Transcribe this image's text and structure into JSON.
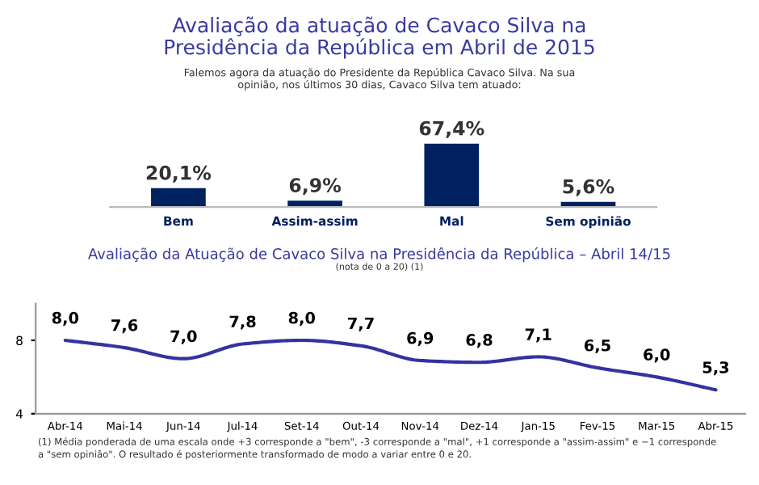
{
  "chart_data": [
    {
      "type": "bar",
      "title": "Avaliação da atuação de Cavaco Silva na\nPresidência da República em Abril de 2015",
      "subtitle": "Falemos agora da atuação do Presidente da República Cavaco Silva. Na sua\nopinião, nos últimos 30 dias, Cavaco Silva tem atuado:",
      "categories": [
        "Bem",
        "Assim-assim",
        "Mal",
        "Sem opinião"
      ],
      "values": [
        20.1,
        6.9,
        67.4,
        5.6
      ],
      "color": "#002060",
      "value_labels": [
        "20,1%",
        "6,9%",
        "67,4%",
        "5,6%"
      ]
    },
    {
      "type": "line",
      "title": "Avaliação da Atuação de Cavaco Silva na Presidência da República – Abril 14/15",
      "subtitle": "(nota de 0 a 20) (1)",
      "categories": [
        "Abr-14",
        "Mai-14",
        "Jun-14",
        "Jul-14",
        "Set-14",
        "Out-14",
        "Nov-14",
        "Dez-14",
        "Jan-15",
        "Fev-15",
        "Mar-15",
        "Abr-15"
      ],
      "values": [
        8.0,
        7.6,
        7.0,
        7.8,
        8.0,
        7.7,
        6.9,
        6.8,
        7.1,
        6.5,
        6.0,
        5.3
      ],
      "color": "#3333a0",
      "value_labels": [
        "8,0",
        "7,6",
        "7,0",
        "7,8",
        "8,0",
        "7,7",
        "6,9",
        "6,8",
        "7,1",
        "6,5",
        "6,0",
        "5,3"
      ],
      "ylim": [
        4,
        10
      ],
      "yticks": [
        4,
        8
      ],
      "annotations": [
        "(1) Média ponderada de uma escala onde +3 corresponde a \"bem\", -3 corresponde a \"mal\", +1 corresponde a \"assim-assim\" e −1 corresponde\na \"sem opinião\". O resultado é posteriormente transformado de modo a variar entre 0 e 20."
      ]
    }
  ]
}
